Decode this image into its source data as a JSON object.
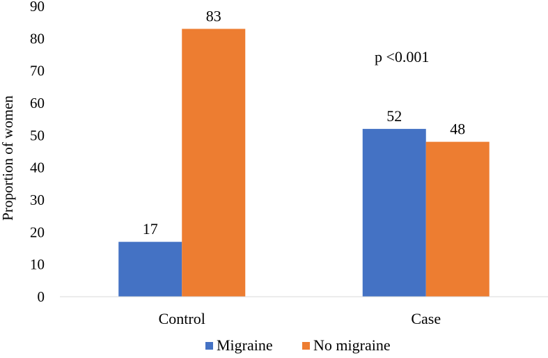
{
  "chart_data": {
    "type": "bar",
    "categories": [
      "Control",
      "Case"
    ],
    "series": [
      {
        "name": "Migraine",
        "values": [
          17,
          52
        ],
        "color": "#4472C4"
      },
      {
        "name": "No migraine",
        "values": [
          83,
          48
        ],
        "color": "#ED7D31"
      }
    ],
    "ylabel": "Proportion of women",
    "ylim": [
      0,
      90
    ],
    "yticks": [
      0,
      10,
      20,
      30,
      40,
      50,
      60,
      70,
      80,
      90
    ],
    "annotation": "p <0.001",
    "legend_position": "bottom",
    "grid": false
  }
}
